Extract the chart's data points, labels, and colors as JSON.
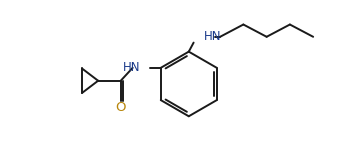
{
  "background_color": "#ffffff",
  "line_color": "#1a1a1a",
  "nh_color": "#1a3a8a",
  "o_color": "#b8860b",
  "line_width": 1.4,
  "font_size": 8.5,
  "figsize": [
    3.42,
    1.55
  ],
  "dpi": 100,
  "xlim": [
    0,
    10.5
  ],
  "ylim": [
    0,
    4.5
  ]
}
